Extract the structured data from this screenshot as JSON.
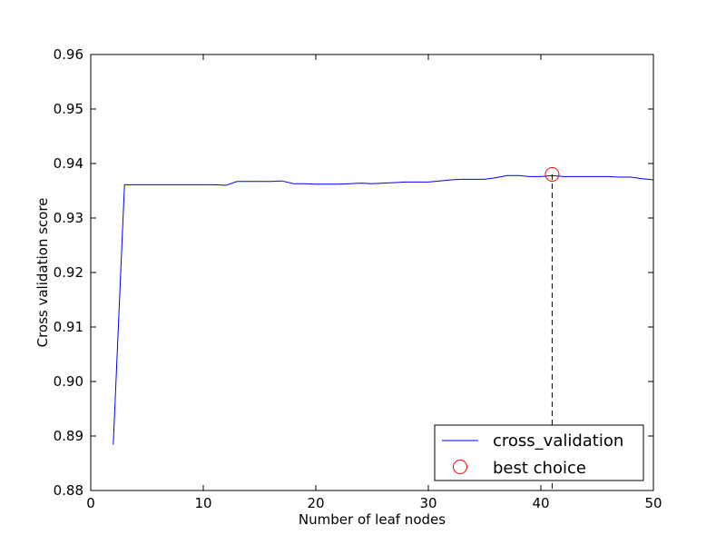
{
  "chart_data": {
    "type": "line",
    "title": "",
    "xlabel": "Number of leaf nodes",
    "ylabel": "Cross validation score",
    "xlim": [
      0,
      50
    ],
    "ylim": [
      0.88,
      0.96
    ],
    "xticks": [
      "0",
      "10",
      "20",
      "30",
      "40",
      "50"
    ],
    "yticks": [
      "0.88",
      "0.89",
      "0.90",
      "0.91",
      "0.92",
      "0.93",
      "0.94",
      "0.95",
      "0.96"
    ],
    "grid": false,
    "legend_position": "bottom-right",
    "series": [
      {
        "name": "cross_validation",
        "color": "#0000ff",
        "x": [
          2,
          3,
          4,
          5,
          6,
          7,
          8,
          9,
          10,
          11,
          12,
          13,
          14,
          15,
          16,
          17,
          18,
          19,
          20,
          21,
          22,
          23,
          24,
          25,
          26,
          27,
          28,
          29,
          30,
          31,
          32,
          33,
          34,
          35,
          36,
          37,
          38,
          39,
          40,
          41,
          42,
          43,
          44,
          45,
          46,
          47,
          48,
          49,
          50
        ],
        "y": [
          0.8884,
          0.9361,
          0.9361,
          0.9361,
          0.9361,
          0.9361,
          0.9361,
          0.9361,
          0.9361,
          0.9361,
          0.936,
          0.9367,
          0.9367,
          0.9367,
          0.9367,
          0.9368,
          0.9363,
          0.9363,
          0.9362,
          0.9362,
          0.9362,
          0.9363,
          0.9364,
          0.9363,
          0.9364,
          0.9365,
          0.9366,
          0.9366,
          0.9366,
          0.9368,
          0.937,
          0.9371,
          0.9371,
          0.9371,
          0.9374,
          0.9378,
          0.9378,
          0.9376,
          0.9376,
          0.9378,
          0.9376,
          0.9376,
          0.9376,
          0.9376,
          0.9376,
          0.9375,
          0.9375,
          0.9372,
          0.937
        ]
      }
    ],
    "best_choice": {
      "name": "best choice",
      "x": 41,
      "y": 0.938,
      "color": "#ff0000"
    }
  }
}
